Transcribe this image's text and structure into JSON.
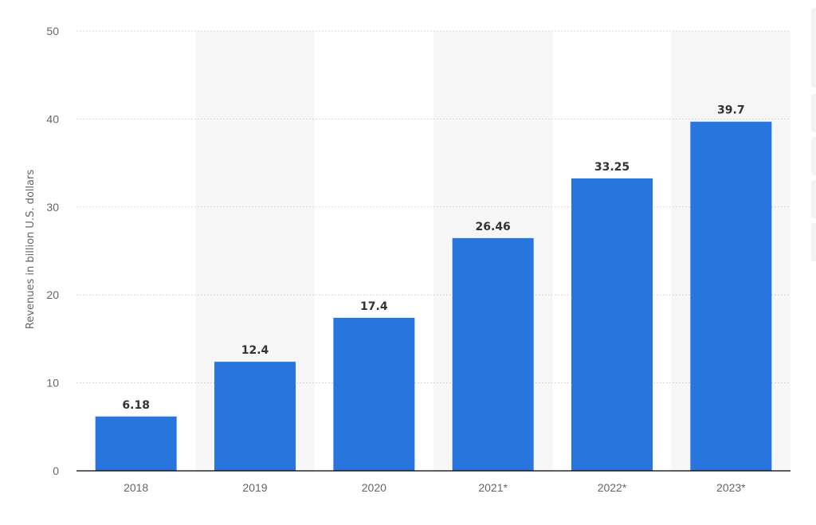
{
  "chart_data": {
    "type": "bar",
    "categories": [
      "2018",
      "2019",
      "2020",
      "2021*",
      "2022*",
      "2023*"
    ],
    "values": [
      6.18,
      12.4,
      17.4,
      26.46,
      33.25,
      39.7
    ],
    "data_labels": [
      "6.18",
      "12.4",
      "17.4",
      "26.46",
      "33.25",
      "39.7"
    ],
    "ylabel": "Revenues in billion U.S. dollars",
    "xlabel": "",
    "ylim": [
      0,
      50
    ],
    "yticks": [
      0,
      10,
      20,
      30,
      40,
      50
    ],
    "grid": "horizontal-dotted",
    "legend": "none",
    "colors": {
      "bar": "#2876dd",
      "band": "#f7f7f7",
      "grid": "#c8c8c8",
      "axis": "#000000"
    }
  }
}
